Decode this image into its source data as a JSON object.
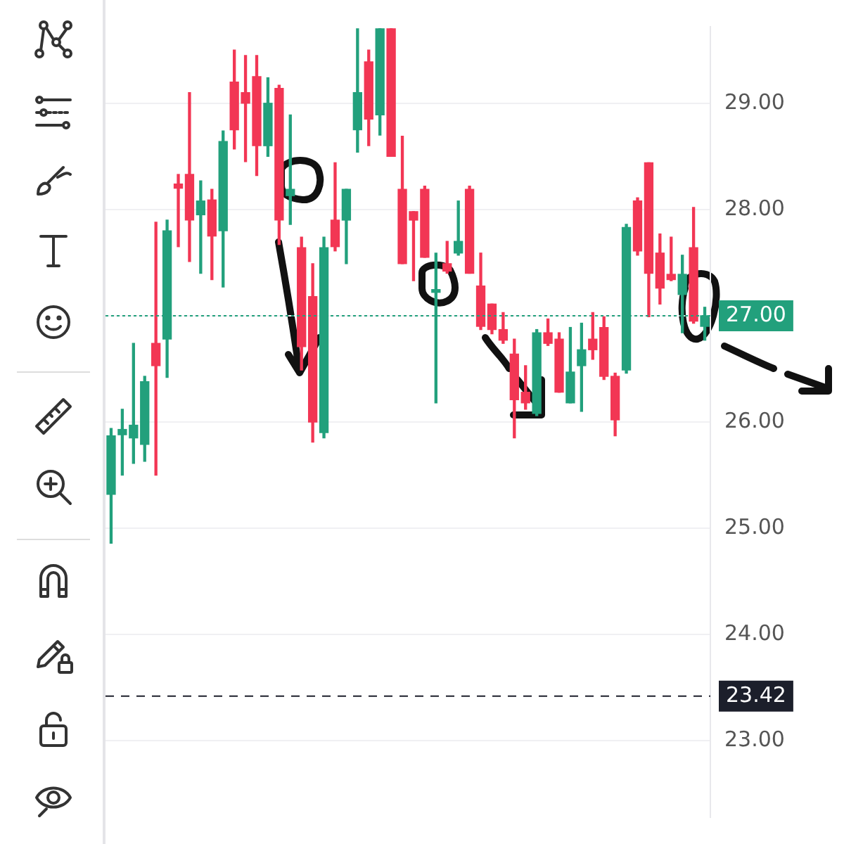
{
  "chart_data": {
    "type": "candlestick",
    "categories": [
      null,
      null,
      null,
      null,
      null,
      null,
      null,
      null,
      null,
      null,
      null,
      null,
      null,
      null,
      null,
      null,
      null,
      null,
      null,
      null,
      null,
      null,
      null,
      null,
      null,
      null,
      null,
      null,
      null,
      null,
      null,
      null,
      null,
      null,
      null,
      null,
      null,
      null,
      null,
      null,
      null,
      null,
      null,
      null,
      null,
      null,
      null,
      null,
      null,
      null,
      null,
      null,
      null,
      null
    ],
    "ohlc": [
      [
        25.32,
        25.94,
        24.86,
        25.87
      ],
      [
        25.88,
        26.12,
        25.5,
        25.93
      ],
      [
        25.85,
        26.74,
        25.61,
        25.97
      ],
      [
        25.79,
        26.43,
        25.63,
        26.38
      ],
      [
        26.74,
        27.88,
        25.5,
        26.53
      ],
      [
        26.78,
        27.9,
        26.42,
        27.8
      ],
      [
        28.24,
        28.33,
        27.65,
        28.2
      ],
      [
        28.33,
        29.1,
        27.51,
        27.9
      ],
      [
        27.95,
        28.27,
        27.4,
        28.08
      ],
      [
        28.09,
        28.19,
        27.34,
        27.75
      ],
      [
        27.8,
        28.74,
        27.27,
        28.64
      ],
      [
        29.2,
        29.5,
        28.57,
        28.75
      ],
      [
        29.1,
        29.45,
        28.45,
        29.0
      ],
      [
        29.25,
        29.45,
        28.32,
        28.6
      ],
      [
        28.6,
        29.24,
        28.5,
        29.0
      ],
      [
        29.14,
        29.17,
        27.67,
        27.9
      ],
      [
        28.13,
        28.89,
        27.86,
        28.19
      ],
      [
        27.64,
        27.74,
        26.49,
        26.71
      ],
      [
        27.18,
        27.49,
        25.81,
        26.0
      ],
      [
        25.9,
        27.74,
        25.85,
        27.64
      ],
      [
        27.9,
        28.44,
        27.61,
        27.65
      ],
      [
        27.9,
        28.19,
        27.49,
        28.19
      ],
      [
        28.75,
        29.7,
        28.54,
        29.1
      ],
      [
        29.39,
        29.5,
        28.6,
        28.85
      ],
      [
        28.89,
        29.7,
        28.7,
        29.7
      ],
      [
        29.7,
        29.7,
        28.5,
        28.5
      ],
      [
        28.19,
        28.69,
        27.49,
        27.49
      ],
      [
        27.98,
        27.98,
        27.33,
        27.9
      ],
      [
        28.19,
        28.22,
        27.55,
        27.55
      ],
      [
        27.22,
        27.59,
        26.18,
        27.24
      ],
      [
        27.49,
        27.7,
        27.4,
        27.42
      ],
      [
        27.59,
        28.08,
        27.57,
        27.7
      ],
      [
        28.19,
        28.22,
        27.4,
        27.4
      ],
      [
        27.28,
        27.59,
        26.87,
        26.9
      ],
      [
        27.11,
        27.11,
        26.83,
        26.87
      ],
      [
        26.87,
        27.03,
        26.74,
        26.77
      ],
      [
        26.64,
        26.78,
        25.85,
        26.21
      ],
      [
        26.28,
        26.53,
        26.12,
        26.18
      ],
      [
        26.08,
        26.87,
        26.06,
        26.84
      ],
      [
        26.84,
        26.97,
        26.72,
        26.74
      ],
      [
        26.78,
        26.84,
        26.28,
        26.28
      ],
      [
        26.18,
        26.89,
        26.18,
        26.47
      ],
      [
        26.53,
        26.93,
        26.1,
        26.68
      ],
      [
        26.78,
        27.03,
        26.59,
        26.68
      ],
      [
        26.89,
        26.99,
        26.4,
        26.43
      ],
      [
        26.43,
        26.46,
        25.87,
        26.02
      ],
      [
        26.49,
        27.86,
        26.46,
        27.83
      ],
      [
        28.08,
        28.11,
        27.57,
        27.61
      ],
      [
        28.44,
        28.44,
        26.99,
        27.4
      ],
      [
        27.59,
        27.77,
        27.11,
        27.26
      ],
      [
        27.39,
        27.74,
        27.33,
        27.34
      ],
      [
        27.2,
        27.57,
        26.84,
        27.39
      ],
      [
        27.64,
        28.02,
        26.93,
        26.95
      ],
      [
        26.9,
        27.08,
        26.77,
        27.0
      ]
    ],
    "colors": [
      "#22a07c",
      "#22a07c",
      "#22a07c",
      "#22a07c",
      "#f23654",
      "#22a07c",
      "#f23654",
      "#f23654",
      "#22a07c",
      "#f23654",
      "#22a07c",
      "#f23654",
      "#f23654",
      "#f23654",
      "#22a07c",
      "#f23654",
      "#22a07c",
      "#f23654",
      "#f23654",
      "#22a07c",
      "#f23654",
      "#22a07c",
      "#22a07c",
      "#f23654",
      "#22a07c",
      "#f23654",
      "#f23654",
      "#f23654",
      "#f23654",
      "#22a07c",
      "#f23654",
      "#22a07c",
      "#f23654",
      "#f23654",
      "#f23654",
      "#f23654",
      "#f23654",
      "#f23654",
      "#22a07c",
      "#f23654",
      "#f23654",
      "#22a07c",
      "#22a07c",
      "#f23654",
      "#f23654",
      "#f23654",
      "#22a07c",
      "#f23654",
      "#f23654",
      "#f23654",
      "#f23654",
      "#22a07c",
      "#f23654",
      "#22a07c"
    ],
    "ylim": [
      22.28,
      29.72
    ],
    "yticks": [
      {
        "value": 23,
        "label": "23.00"
      },
      {
        "value": 24,
        "label": "24.00"
      },
      {
        "value": 25,
        "label": "25.00"
      },
      {
        "value": 26,
        "label": "26.00"
      },
      {
        "value": 27,
        "label": "27.00"
      },
      {
        "value": 28,
        "label": "28.00"
      },
      {
        "value": 29,
        "label": "29.00"
      }
    ],
    "ref_lines": [
      {
        "axis": "y",
        "value": 27,
        "label": "27.00",
        "color": "#22a07c",
        "line_style": "dotted"
      },
      {
        "axis": "y",
        "value": 23.42,
        "label": "23.42",
        "color": "#1c1f2b",
        "line_style": "dashed"
      }
    ],
    "grid": "y",
    "legend": false
  }
}
